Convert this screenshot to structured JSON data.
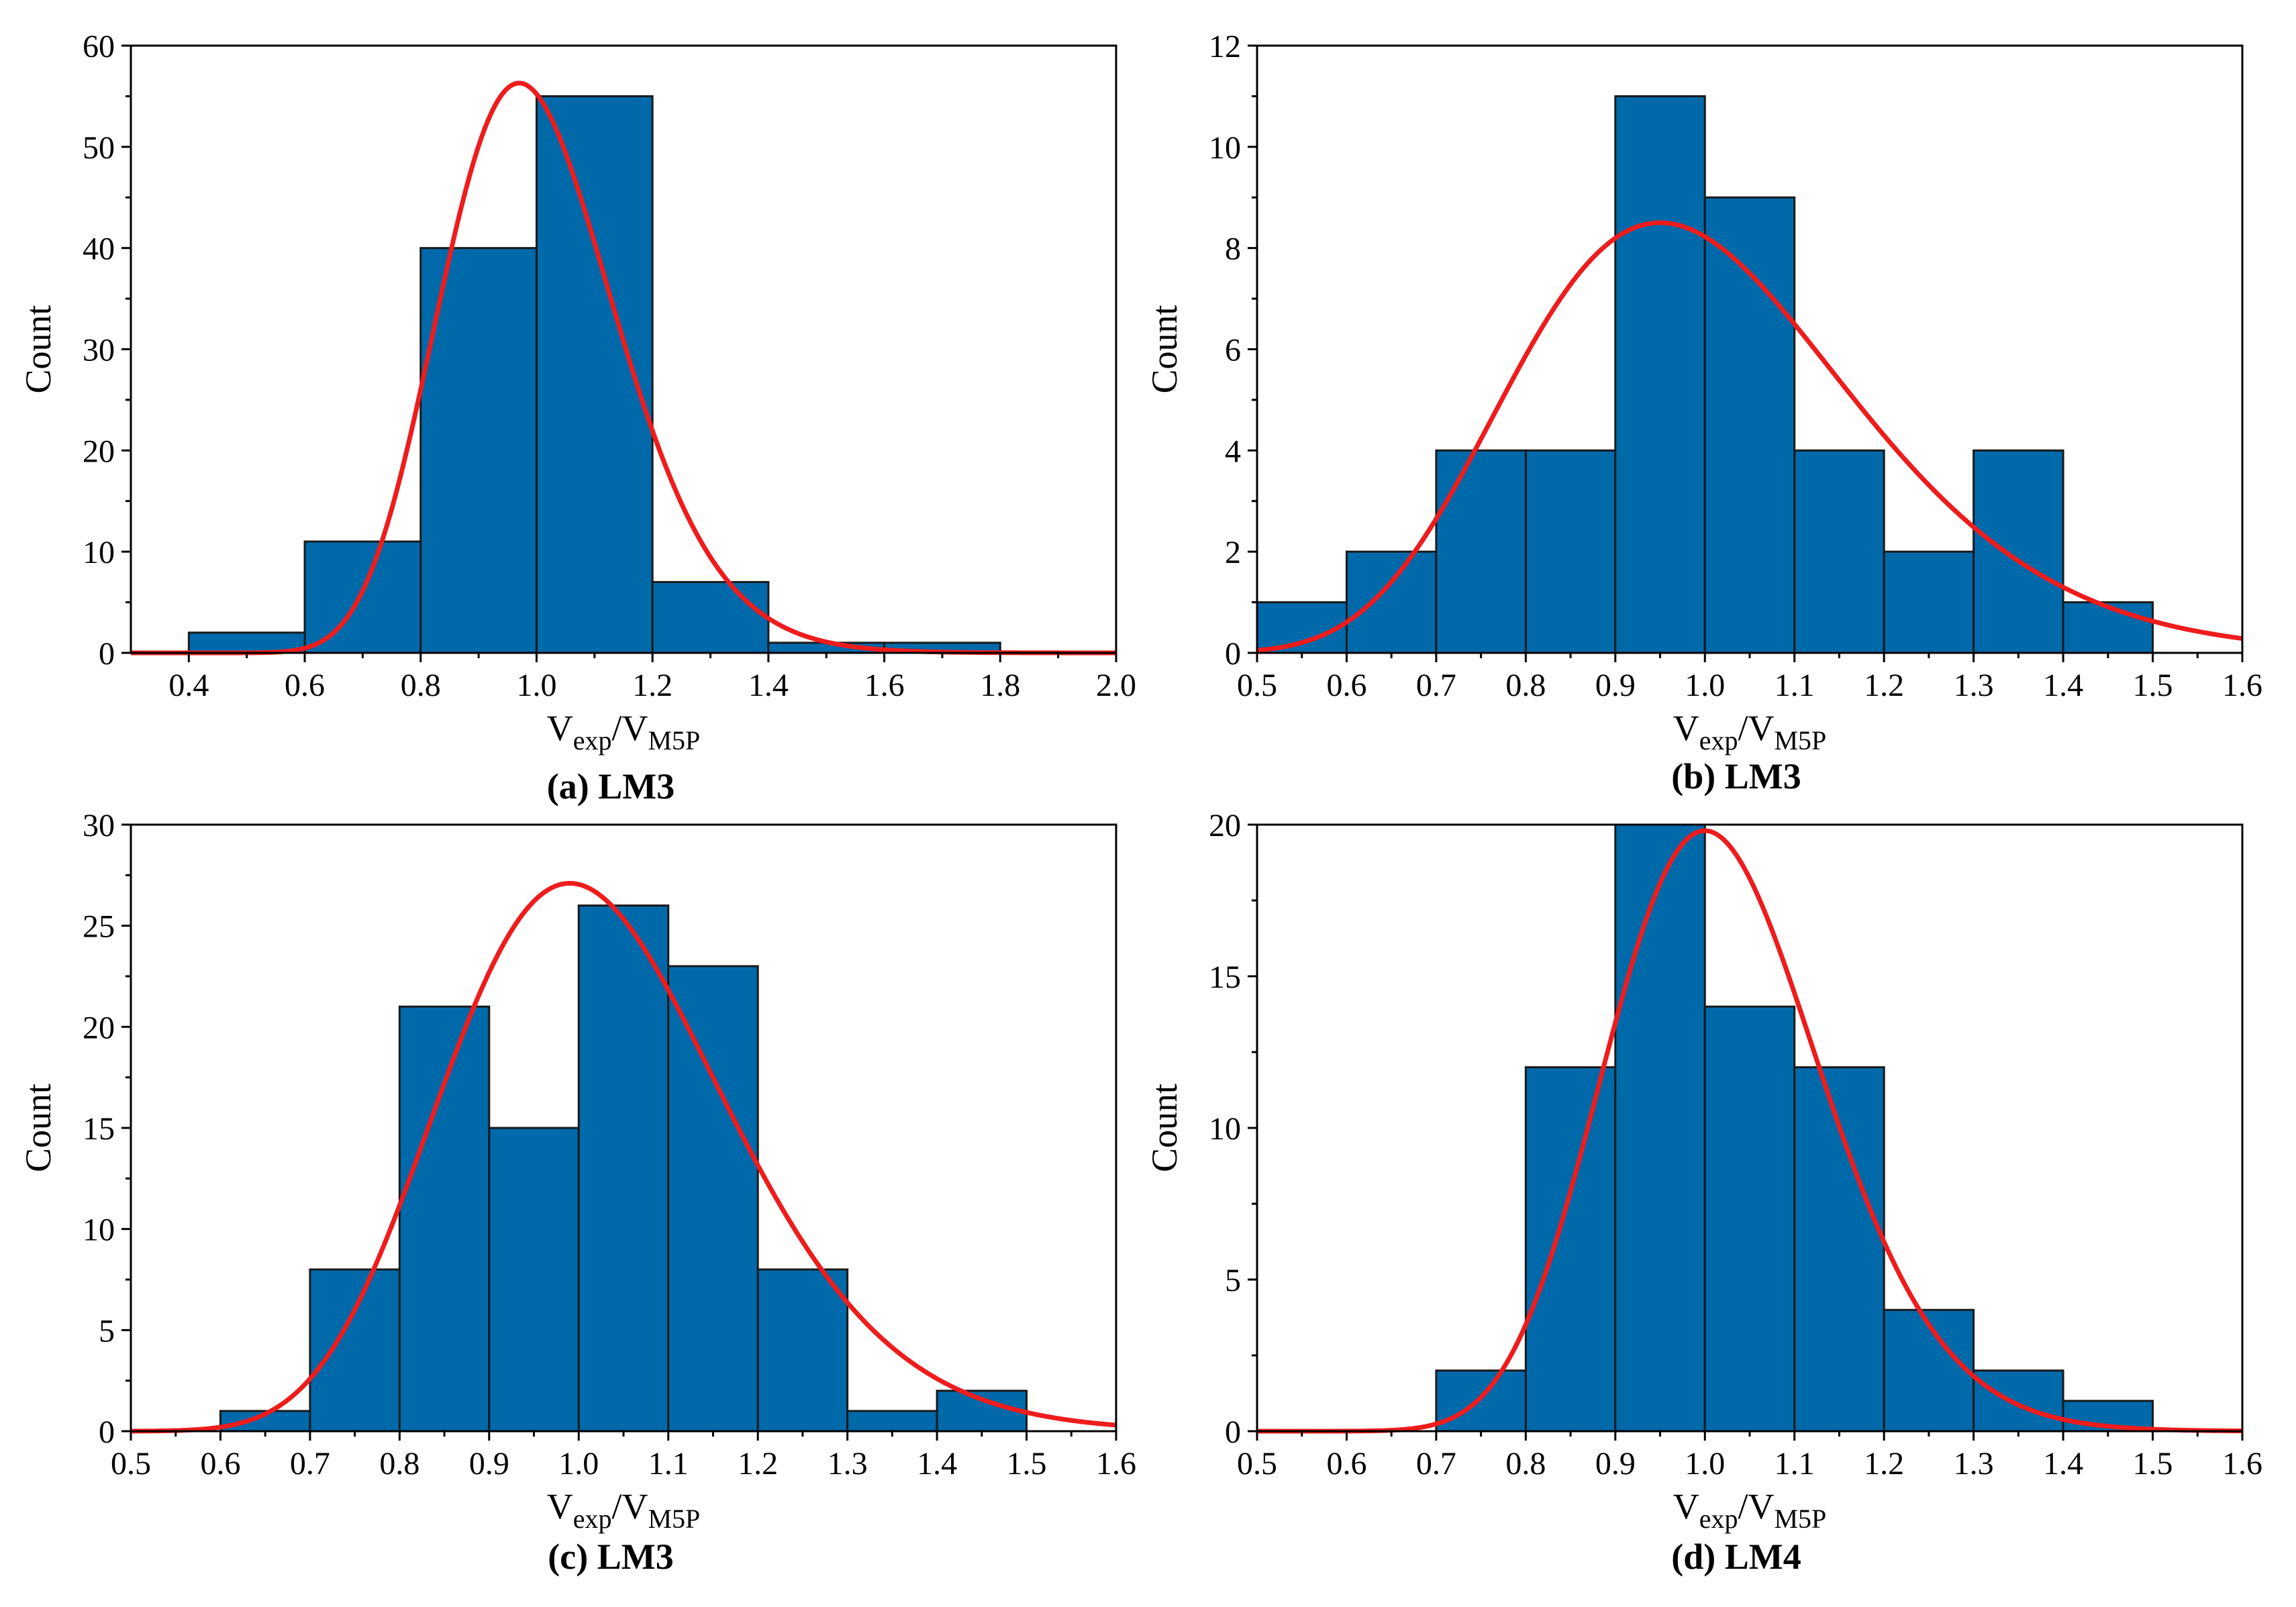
{
  "colors": {
    "bar_fill": "#0069AA",
    "bar_edge": "#1a1a1a",
    "curve": "#EE1C1C",
    "axis": "#000000"
  },
  "chart_data": [
    {
      "type": "bar",
      "caption": "(a) LM3",
      "ylabel": "Count",
      "xlabel": {
        "v1": "V",
        "s1": "exp",
        "sep": "/V",
        "s2": "M5P"
      },
      "xlim": [
        0.3,
        2.0
      ],
      "ylim": [
        0,
        60
      ],
      "xticks": [
        0.4,
        0.6,
        0.8,
        1.0,
        1.2,
        1.4,
        1.6,
        1.8,
        2.0
      ],
      "xtick_labels": [
        "0.4",
        "0.6",
        "0.8",
        "1.0",
        "1.2",
        "1.4",
        "1.6",
        "1.8",
        "2.0"
      ],
      "yticks": [
        0,
        10,
        20,
        30,
        40,
        50,
        60
      ],
      "ytick_labels": [
        "0",
        "10",
        "20",
        "30",
        "40",
        "50",
        "60"
      ],
      "bin_edges": [
        0.4,
        0.6,
        0.8,
        1.0,
        1.2,
        1.4,
        1.6,
        1.8
      ],
      "counts": [
        2,
        11,
        40,
        55,
        7,
        1,
        1
      ],
      "fit_curve": {
        "type": "lognormal",
        "peak_x": 0.97,
        "peak_y": 56.3,
        "sigma": 0.155
      }
    },
    {
      "type": "bar",
      "caption": "(b) LM3",
      "ylabel": "Count",
      "xlabel": {
        "v1": "V",
        "s1": "exp",
        "sep": "/V",
        "s2": "M5P"
      },
      "xlim": [
        0.5,
        1.6
      ],
      "ylim": [
        0,
        12
      ],
      "xticks": [
        0.5,
        0.6,
        0.7,
        0.8,
        0.9,
        1.0,
        1.1,
        1.2,
        1.3,
        1.4,
        1.5,
        1.6
      ],
      "xtick_labels": [
        "0.5",
        "0.6",
        "0.7",
        "0.8",
        "0.9",
        "1.0",
        "1.1",
        "1.2",
        "1.3",
        "1.4",
        "1.5",
        "1.6"
      ],
      "yticks": [
        0,
        2,
        4,
        6,
        8,
        10,
        12
      ],
      "ytick_labels": [
        "0",
        "2",
        "4",
        "6",
        "8",
        "10",
        "12"
      ],
      "bin_edges": [
        0.5,
        0.6,
        0.7,
        0.8,
        0.9,
        1.0,
        1.1,
        1.2,
        1.3,
        1.4,
        1.5
      ],
      "counts": [
        1,
        2,
        4,
        4,
        11,
        9,
        4,
        2,
        4,
        1
      ],
      "fit_curve": {
        "type": "lognormal",
        "peak_x": 0.95,
        "peak_y": 8.5,
        "sigma": 0.2
      }
    },
    {
      "type": "bar",
      "caption": "(c) LM3",
      "ylabel": "Count",
      "xlabel": {
        "v1": "V",
        "s1": "exp",
        "sep": "/V",
        "s2": "M5P"
      },
      "xlim": [
        0.5,
        1.6
      ],
      "ylim": [
        0,
        30
      ],
      "xticks": [
        0.5,
        0.6,
        0.7,
        0.8,
        0.9,
        1.0,
        1.1,
        1.2,
        1.3,
        1.4,
        1.5,
        1.6
      ],
      "xtick_labels": [
        "0.5",
        "0.6",
        "0.7",
        "0.8",
        "0.9",
        "1.0",
        "1.1",
        "1.2",
        "1.3",
        "1.4",
        "1.5",
        "1.6"
      ],
      "yticks": [
        0,
        5,
        10,
        15,
        20,
        25,
        30
      ],
      "ytick_labels": [
        "0",
        "5",
        "10",
        "15",
        "20",
        "25",
        "30"
      ],
      "bin_edges": [
        0.6,
        0.7,
        0.8,
        0.9,
        1.0,
        1.1,
        1.2,
        1.3,
        1.4,
        1.5
      ],
      "counts": [
        1,
        8,
        21,
        15,
        26,
        23,
        8,
        1,
        2
      ],
      "fit_curve": {
        "type": "lognormal",
        "peak_x": 0.99,
        "peak_y": 27.1,
        "sigma": 0.16
      }
    },
    {
      "type": "bar",
      "caption": "(d) LM4",
      "ylabel": "Count",
      "xlabel": {
        "v1": "V",
        "s1": "exp",
        "sep": "/V",
        "s2": "M5P"
      },
      "xlim": [
        0.5,
        1.6
      ],
      "ylim": [
        0,
        20
      ],
      "xticks": [
        0.5,
        0.6,
        0.7,
        0.8,
        0.9,
        1.0,
        1.1,
        1.2,
        1.3,
        1.4,
        1.5,
        1.6
      ],
      "xtick_labels": [
        "0.5",
        "0.6",
        "0.7",
        "0.8",
        "0.9",
        "1.0",
        "1.1",
        "1.2",
        "1.3",
        "1.4",
        "1.5",
        "1.6"
      ],
      "yticks": [
        0,
        5,
        10,
        15,
        20
      ],
      "ytick_labels": [
        "0",
        "5",
        "10",
        "15",
        "20"
      ],
      "bin_edges": [
        0.7,
        0.8,
        0.9,
        1.0,
        1.1,
        1.2,
        1.3,
        1.4,
        1.5
      ],
      "counts": [
        2,
        12,
        20,
        14,
        12,
        4,
        2,
        1
      ],
      "fit_curve": {
        "type": "lognormal",
        "peak_x": 1.0,
        "peak_y": 19.8,
        "sigma": 0.12
      }
    }
  ]
}
